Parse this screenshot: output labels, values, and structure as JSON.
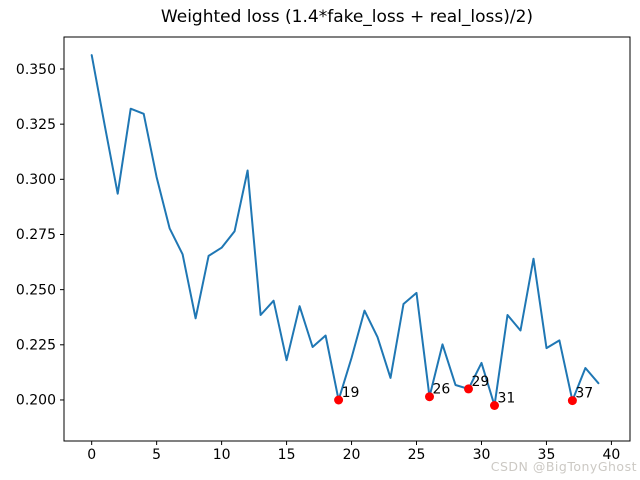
{
  "figure": {
    "background": "#ffffff"
  },
  "chart_data": {
    "type": "line",
    "title": "Weighted loss (1.4*fake_loss + real_loss)/2)",
    "xlabel": "",
    "ylabel": "",
    "grid": false,
    "legend": "none",
    "x": [
      0,
      1,
      2,
      3,
      4,
      5,
      6,
      7,
      8,
      9,
      10,
      11,
      12,
      13,
      14,
      15,
      16,
      17,
      18,
      19,
      20,
      21,
      22,
      23,
      24,
      25,
      26,
      27,
      28,
      29,
      30,
      31,
      32,
      33,
      34,
      35,
      36,
      37,
      38,
      39
    ],
    "values": [
      0.3563,
      0.3245,
      0.2935,
      0.332,
      0.3297,
      0.301,
      0.2778,
      0.266,
      0.237,
      0.2653,
      0.269,
      0.2765,
      0.304,
      0.2385,
      0.245,
      0.218,
      0.2425,
      0.224,
      0.2292,
      0.2,
      0.219,
      0.2405,
      0.2285,
      0.21,
      0.2435,
      0.2485,
      0.2015,
      0.2252,
      0.2068,
      0.205,
      0.2168,
      0.1975,
      0.2385,
      0.2315,
      0.264,
      0.2235,
      0.227,
      0.1997,
      0.2145,
      0.2076
    ],
    "line_color": "#1f77b4",
    "line_width": 2,
    "marker_color": "#ff0000",
    "marker_radius": 4.5,
    "marked_points": [
      {
        "x": 19,
        "y": 0.2,
        "label": "19"
      },
      {
        "x": 26,
        "y": 0.2015,
        "label": "26"
      },
      {
        "x": 29,
        "y": 0.205,
        "label": "29"
      },
      {
        "x": 31,
        "y": 0.1975,
        "label": "31"
      },
      {
        "x": 37,
        "y": 0.1997,
        "label": "37"
      }
    ],
    "xticks": [
      0,
      5,
      10,
      15,
      20,
      25,
      30,
      35,
      40
    ],
    "yticks": [
      0.2,
      0.225,
      0.25,
      0.275,
      0.3,
      0.325,
      0.35
    ],
    "xlim": [
      -2.13,
      41.43
    ],
    "ylim": [
      0.1814,
      0.3645
    ],
    "axis_color": "#000000",
    "tick_font_size": 14,
    "annotation_font_size": 14
  },
  "watermark": {
    "text": "CSDN @BigTonyGhost",
    "color": "#ccc9c4"
  }
}
